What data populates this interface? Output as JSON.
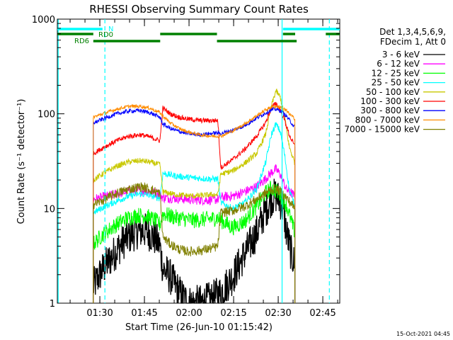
{
  "colors": {
    "background": "#ffffff",
    "axis": "#000000",
    "n_bar": "#00ffff",
    "rd_bar": "#008000"
  },
  "chart_data": {
    "type": "line",
    "title": "RHESSI Observing Summary Count Rates",
    "xlabel": "Start Time (26-Jun-10 01:15:42)",
    "ylabel": "Count Rate (s⁻¹ detector⁻¹)",
    "yscale": "log",
    "ylim": [
      1,
      1000
    ],
    "xlim_minutes": [
      0,
      95
    ],
    "x_ticks": [
      {
        "label": "01:30",
        "t": 14.3
      },
      {
        "label": "01:45",
        "t": 29.3
      },
      {
        "label": "02:00",
        "t": 44.3
      },
      {
        "label": "02:15",
        "t": 59.3
      },
      {
        "label": "02:30",
        "t": 74.3
      },
      {
        "label": "02:45",
        "t": 89.3
      }
    ],
    "y_ticks": [
      {
        "label": "1",
        "v": 1
      },
      {
        "label": "10",
        "v": 10
      },
      {
        "label": "100",
        "v": 100
      },
      {
        "label": "1000",
        "v": 1000
      }
    ],
    "legend_header": [
      "Det 1,3,4,5,6,9,",
      "FDecim 1, Att 0"
    ],
    "flags": {
      "n_label": "N",
      "rd0_label": "RD0",
      "rd6_label": "RD6",
      "n_segments": [
        [
          0,
          15.2
        ],
        [
          75.9,
          95
        ]
      ],
      "rd0_segments": [
        [
          0,
          12.1
        ],
        [
          34.6,
          53.7
        ],
        [
          75.9,
          80.0
        ],
        [
          90.3,
          95
        ]
      ],
      "rd6_segments": [
        [
          12.1,
          34.6
        ],
        [
          53.7,
          80.5
        ]
      ]
    },
    "saa_lines": {
      "solid": [
        0.3,
        75.6
      ],
      "dashed": [
        16.0,
        91.5
      ]
    },
    "data_gaps": [
      [
        0,
        12.1
      ],
      [
        79.9,
        95
      ]
    ],
    "series": [
      {
        "name": "3 - 6 keV",
        "color": "#000000",
        "points": [
          [
            12.1,
            1.5
          ],
          [
            15,
            2.2
          ],
          [
            19,
            3.3
          ],
          [
            23,
            4.8
          ],
          [
            27,
            5.8
          ],
          [
            30,
            5.8
          ],
          [
            33,
            4.8
          ],
          [
            34.5,
            4.0
          ],
          [
            35.5,
            2.3
          ],
          [
            38,
            1.9
          ],
          [
            41,
            1.3
          ],
          [
            44,
            1.0
          ],
          [
            48,
            1.0
          ],
          [
            52,
            1.1
          ],
          [
            55,
            1.3
          ],
          [
            59,
            1.9
          ],
          [
            63,
            3.3
          ],
          [
            67,
            5.5
          ],
          [
            70,
            9.5
          ],
          [
            72,
            12.8
          ],
          [
            73.5,
            13.8
          ],
          [
            75,
            12.0
          ],
          [
            76,
            9.5
          ],
          [
            77,
            5.8
          ],
          [
            78.5,
            3.5
          ],
          [
            79.9,
            2.5
          ]
        ]
      },
      {
        "name": "6 - 12 keV",
        "color": "#ff00ff",
        "points": [
          [
            12.1,
            12.5
          ],
          [
            16,
            13.3
          ],
          [
            20,
            14.3
          ],
          [
            24,
            15.2
          ],
          [
            28,
            15.5
          ],
          [
            31,
            15.0
          ],
          [
            34.5,
            14.3
          ],
          [
            35.5,
            13.0
          ],
          [
            40,
            12.8
          ],
          [
            46,
            12.3
          ],
          [
            52,
            12.3
          ],
          [
            54,
            12.5
          ],
          [
            55,
            13.2
          ],
          [
            59,
            13.5
          ],
          [
            63,
            15.0
          ],
          [
            67,
            17.0
          ],
          [
            70,
            20.5
          ],
          [
            72,
            24.0
          ],
          [
            73.5,
            26.0
          ],
          [
            75,
            23.0
          ],
          [
            77,
            16.0
          ],
          [
            79.9,
            13.5
          ]
        ]
      },
      {
        "name": "12 - 25 keV",
        "color": "#00ff00",
        "points": [
          [
            12.1,
            4.2
          ],
          [
            15,
            5.2
          ],
          [
            19,
            6.5
          ],
          [
            23,
            7.8
          ],
          [
            27,
            8.5
          ],
          [
            30,
            8.3
          ],
          [
            33,
            7.5
          ],
          [
            34.5,
            6.8
          ],
          [
            35.5,
            8.8
          ],
          [
            40,
            8.0
          ],
          [
            46,
            7.5
          ],
          [
            52,
            7.8
          ],
          [
            54,
            8.0
          ],
          [
            55,
            7.5
          ],
          [
            59,
            6.3
          ],
          [
            63,
            7.3
          ],
          [
            67,
            10.5
          ],
          [
            70,
            14.5
          ],
          [
            72,
            16.5
          ],
          [
            73.5,
            15.5
          ],
          [
            75,
            14.0
          ],
          [
            77,
            11.0
          ],
          [
            79.9,
            5.5
          ]
        ]
      },
      {
        "name": "25 - 50 keV",
        "color": "#00ffff",
        "points": [
          [
            12.1,
            9.0
          ],
          [
            16,
            10.5
          ],
          [
            20,
            12.0
          ],
          [
            24,
            13.5
          ],
          [
            28,
            14.3
          ],
          [
            31,
            13.8
          ],
          [
            34.5,
            12.8
          ],
          [
            35.5,
            23.5
          ],
          [
            40,
            22.0
          ],
          [
            46,
            21.0
          ],
          [
            52,
            20.5
          ],
          [
            54,
            20.5
          ],
          [
            55,
            11.5
          ],
          [
            59,
            10.0
          ],
          [
            63,
            11.5
          ],
          [
            67,
            16.0
          ],
          [
            70,
            30.0
          ],
          [
            72,
            60.0
          ],
          [
            73.5,
            78.0
          ],
          [
            75,
            65.0
          ],
          [
            76.5,
            36.0
          ],
          [
            78,
            16.0
          ],
          [
            79.9,
            10.5
          ]
        ]
      },
      {
        "name": "50 - 100 keV",
        "color": "#c8c800",
        "points": [
          [
            12.1,
            20.0
          ],
          [
            16,
            24.0
          ],
          [
            20,
            28.0
          ],
          [
            24,
            31.0
          ],
          [
            28,
            32.0
          ],
          [
            31,
            31.0
          ],
          [
            34.5,
            29.0
          ],
          [
            35.5,
            15.0
          ],
          [
            40,
            14.0
          ],
          [
            46,
            13.5
          ],
          [
            52,
            14.0
          ],
          [
            54,
            14.0
          ],
          [
            55,
            23.0
          ],
          [
            59,
            25.0
          ],
          [
            63,
            30.0
          ],
          [
            67,
            38.0
          ],
          [
            70,
            60.0
          ],
          [
            72,
            120.0
          ],
          [
            73.5,
            175.0
          ],
          [
            75,
            150.0
          ],
          [
            76.5,
            90.0
          ],
          [
            78,
            45.0
          ],
          [
            79.9,
            30.0
          ]
        ]
      },
      {
        "name": "100 - 300 keV",
        "color": "#ff0000",
        "points": [
          [
            12.1,
            38.0
          ],
          [
            16,
            45.0
          ],
          [
            20,
            52.0
          ],
          [
            24,
            58.0
          ],
          [
            28,
            60.0
          ],
          [
            31,
            57.0
          ],
          [
            34.5,
            52.0
          ],
          [
            35.5,
            115.0
          ],
          [
            38,
            100.0
          ],
          [
            41,
            92.0
          ],
          [
            44,
            88.0
          ],
          [
            48,
            85.0
          ],
          [
            52,
            85.0
          ],
          [
            54,
            85.0
          ],
          [
            55,
            27.0
          ],
          [
            59,
            33.0
          ],
          [
            63,
            42.0
          ],
          [
            67,
            58.0
          ],
          [
            70,
            80.0
          ],
          [
            72,
            115.0
          ],
          [
            73.5,
            130.0
          ],
          [
            75,
            110.0
          ],
          [
            76.5,
            85.0
          ],
          [
            78,
            60.0
          ],
          [
            79.9,
            45.0
          ]
        ]
      },
      {
        "name": "300 - 800 keV",
        "color": "#0000ff",
        "points": [
          [
            12.1,
            80.0
          ],
          [
            16,
            90.0
          ],
          [
            20,
            100.0
          ],
          [
            24,
            107.0
          ],
          [
            28,
            108.0
          ],
          [
            31,
            103.0
          ],
          [
            34.5,
            92.0
          ],
          [
            35.5,
            78.0
          ],
          [
            38,
            70.0
          ],
          [
            41,
            65.0
          ],
          [
            44,
            62.0
          ],
          [
            48,
            60.0
          ],
          [
            52,
            62.0
          ],
          [
            54,
            63.0
          ],
          [
            55,
            62.0
          ],
          [
            59,
            67.0
          ],
          [
            63,
            75.0
          ],
          [
            67,
            90.0
          ],
          [
            70,
            102.0
          ],
          [
            72,
            110.0
          ],
          [
            73.5,
            112.0
          ],
          [
            75,
            108.0
          ],
          [
            77,
            95.0
          ],
          [
            79.9,
            72.0
          ]
        ]
      },
      {
        "name": "800 - 7000 keV",
        "color": "#ff8c00",
        "points": [
          [
            12.1,
            92.0
          ],
          [
            16,
            102.0
          ],
          [
            20,
            112.0
          ],
          [
            24,
            120.0
          ],
          [
            28,
            120.0
          ],
          [
            31,
            115.0
          ],
          [
            34.5,
            103.0
          ],
          [
            35.5,
            95.0
          ],
          [
            38,
            80.0
          ],
          [
            41,
            70.0
          ],
          [
            44,
            64.0
          ],
          [
            48,
            60.0
          ],
          [
            52,
            58.0
          ],
          [
            54,
            58.0
          ],
          [
            55,
            58.0
          ],
          [
            59,
            66.0
          ],
          [
            63,
            78.0
          ],
          [
            67,
            95.0
          ],
          [
            70,
            110.0
          ],
          [
            72,
            118.0
          ],
          [
            73.5,
            120.0
          ],
          [
            75,
            118.0
          ],
          [
            77,
            108.0
          ],
          [
            79.9,
            88.0
          ]
        ]
      },
      {
        "name": "7000 - 15000 keV",
        "color": "#808000",
        "points": [
          [
            12.1,
            11.0
          ],
          [
            16,
            12.5
          ],
          [
            20,
            14.5
          ],
          [
            24,
            16.0
          ],
          [
            28,
            17.0
          ],
          [
            31,
            16.0
          ],
          [
            34.5,
            14.5
          ],
          [
            35.5,
            5.0
          ],
          [
            38,
            4.2
          ],
          [
            41,
            3.7
          ],
          [
            44,
            3.5
          ],
          [
            48,
            3.6
          ],
          [
            52,
            3.8
          ],
          [
            54,
            4.0
          ],
          [
            55,
            9.0
          ],
          [
            59,
            9.5
          ],
          [
            63,
            10.5
          ],
          [
            67,
            12.5
          ],
          [
            70,
            14.5
          ],
          [
            72,
            15.8
          ],
          [
            73.5,
            16.0
          ],
          [
            75,
            15.2
          ],
          [
            77,
            13.0
          ],
          [
            79.9,
            10.0
          ]
        ]
      }
    ]
  },
  "footer": {
    "date_stamp": "15-Oct-2021 04:45"
  }
}
